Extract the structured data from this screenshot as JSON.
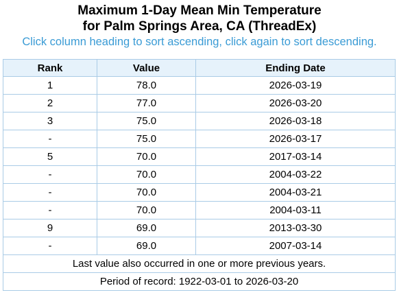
{
  "header": {
    "title_line1": "Maximum 1-Day Mean Min Temperature",
    "title_line2": "for Palm Springs Area, CA (ThreadEx)",
    "instructions": "Click column heading to sort ascending, click again to sort descending."
  },
  "table": {
    "columns": [
      "Rank",
      "Value",
      "Ending Date"
    ],
    "rows": [
      {
        "rank": "1",
        "value": "78.0",
        "date": "2026-03-19"
      },
      {
        "rank": "2",
        "value": "77.0",
        "date": "2026-03-20"
      },
      {
        "rank": "3",
        "value": "75.0",
        "date": "2026-03-18"
      },
      {
        "rank": "-",
        "value": "75.0",
        "date": "2026-03-17"
      },
      {
        "rank": "5",
        "value": "70.0",
        "date": "2017-03-14"
      },
      {
        "rank": "-",
        "value": "70.0",
        "date": "2004-03-22"
      },
      {
        "rank": "-",
        "value": "70.0",
        "date": "2004-03-21"
      },
      {
        "rank": "-",
        "value": "70.0",
        "date": "2004-03-11"
      },
      {
        "rank": "9",
        "value": "69.0",
        "date": "2013-03-30"
      },
      {
        "rank": "-",
        "value": "69.0",
        "date": "2007-03-14"
      }
    ],
    "footnote": "Last value also occurred in one or more previous years.",
    "period": "Period of record: 1922-03-01 to 2026-03-20"
  },
  "colors": {
    "instructions_text": "#3a9bd5",
    "header_background": "#e6f2fb",
    "border": "#a9cbe6"
  }
}
